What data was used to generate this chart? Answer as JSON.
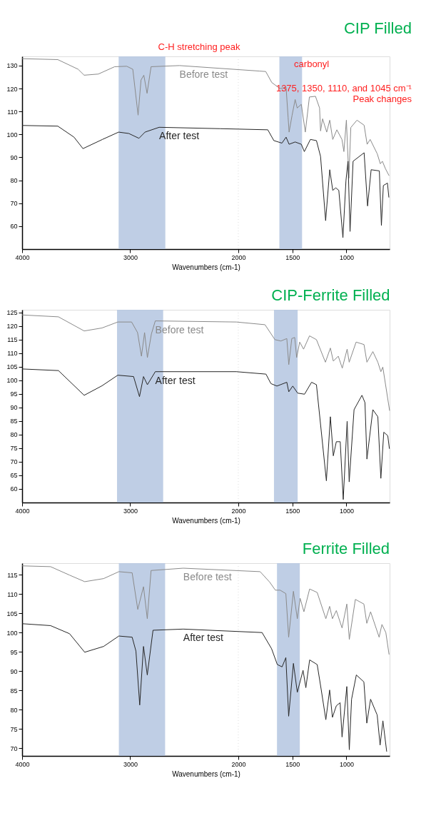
{
  "chart_data": [
    {
      "type": "line",
      "title": "CIP Filled",
      "xlabel": "Wavenumbers (cm-1)",
      "xlim": [
        4000,
        600
      ],
      "xticks": [
        4000,
        3000,
        2000,
        1500,
        1000
      ],
      "ylim": [
        50,
        134
      ],
      "yticks": [
        60,
        70,
        80,
        90,
        100,
        110,
        120,
        130
      ],
      "series": [
        {
          "name": "Before test",
          "color": "#8a8a8a",
          "x": [
            4000,
            3670,
            3482,
            3426,
            3295,
            3144,
            3032,
            2976,
            2927,
            2900,
            2874,
            2844,
            2807,
            2544,
            1803,
            1746,
            1690,
            1615,
            1558,
            1539,
            1530,
            1502,
            1474,
            1455,
            1417,
            1380,
            1342,
            1286,
            1248,
            1239,
            1220,
            1182,
            1154,
            1126,
            1088,
            1041,
            1023,
            1000,
            977,
            959,
            902,
            836,
            808,
            780,
            714,
            686,
            667,
            639,
            605
          ],
          "values": [
            133.0,
            132.6,
            128.4,
            125.8,
            126.3,
            129.5,
            129.7,
            128.4,
            108.4,
            123.7,
            125.8,
            117.9,
            129.5,
            130.0,
            127.6,
            127.4,
            122.6,
            120.0,
            120.5,
            107.3,
            101.0,
            108.4,
            115.2,
            111.5,
            113.1,
            101.0,
            116.3,
            116.6,
            111.5,
            101.5,
            106.8,
            101.0,
            106.2,
            97.8,
            102.0,
            97.8,
            92.5,
            106.2,
            80.9,
            103.0,
            106.2,
            104.0,
            95.7,
            97.8,
            91.5,
            87.2,
            88.3,
            85.1,
            82.0
          ]
        },
        {
          "name": "After test",
          "color": "#262626",
          "x": [
            4000,
            3670,
            3520,
            3437,
            3257,
            3107,
            3013,
            2919,
            2863,
            2732,
            2169,
            1727,
            1671,
            1596,
            1558,
            1530,
            1474,
            1417,
            1389,
            1333,
            1277,
            1239,
            1192,
            1154,
            1126,
            1098,
            1070,
            1032,
            1004,
            985,
            966,
            938,
            836,
            804,
            771,
            695,
            676,
            658,
            620,
            607
          ],
          "values": [
            103.9,
            103.6,
            98.8,
            93.8,
            97.8,
            101.0,
            100.4,
            98.3,
            101.0,
            103.1,
            102.5,
            102.0,
            97.3,
            96.2,
            98.8,
            95.7,
            96.7,
            95.7,
            92.5,
            97.8,
            97.3,
            90.4,
            62.4,
            84.6,
            75.6,
            76.7,
            75.6,
            55.0,
            79.8,
            88.3,
            57.7,
            88.3,
            92.0,
            68.8,
            84.6,
            84.1,
            60.3,
            77.7,
            78.8,
            72.5
          ]
        }
      ],
      "bands": [
        {
          "axis": "x",
          "from": 3107,
          "to": 2675,
          "color": "#b4c6e0"
        },
        {
          "axis": "x",
          "from": 1620,
          "to": 1410,
          "color": "#b4c6e0"
        }
      ],
      "ref_lines": [
        {
          "axis": "x",
          "value": 2000,
          "color": "#dddddd",
          "line_style": "dotted"
        }
      ],
      "annotations": [
        "C-H stretching peak",
        "carbonyl",
        "1375, 1350, 1110, and 1045 cm⁻¹\nPeak changes"
      ]
    },
    {
      "type": "line",
      "title": "CIP-Ferrite Filled",
      "xlabel": "Wavenumbers (cm-1)",
      "xlim": [
        4000,
        600
      ],
      "xticks": [
        4000,
        3000,
        2000,
        1500,
        1000
      ],
      "ylim": [
        55,
        126
      ],
      "yticks": [
        60,
        65,
        70,
        75,
        80,
        85,
        90,
        95,
        100,
        105,
        110,
        115,
        120,
        125
      ],
      "series": [
        {
          "name": "Before test",
          "color": "#8a8a8a",
          "x": [
            4000,
            3664,
            3426,
            3261,
            3115,
            2987,
            2932,
            2896,
            2867,
            2841,
            2804,
            2768,
            2018,
            1753,
            1661,
            1606,
            1551,
            1533,
            1505,
            1478,
            1460,
            1432,
            1396,
            1341,
            1277,
            1194,
            1148,
            1121,
            1075,
            1038,
            993,
            974,
            910,
            837,
            810,
            755,
            709,
            681,
            663,
            600
          ],
          "values": [
            124.1,
            123.4,
            118.2,
            119.3,
            121.5,
            121.5,
            117.6,
            108.9,
            117.6,
            108.4,
            117.1,
            121.9,
            121.5,
            120.5,
            115.0,
            114.5,
            115.4,
            105.8,
            115.4,
            115.8,
            108.4,
            114.1,
            111.5,
            116.4,
            115.0,
            106.7,
            111.9,
            107.1,
            108.9,
            104.5,
            111.5,
            106.7,
            114.1,
            113.2,
            106.7,
            110.6,
            106.7,
            103.2,
            104.9,
            88.8
          ]
        },
        {
          "name": "After test",
          "color": "#262626",
          "x": [
            4000,
            3664,
            3426,
            3261,
            3115,
            2969,
            2914,
            2877,
            2841,
            2768,
            2018,
            1744,
            1698,
            1643,
            1551,
            1533,
            1496,
            1451,
            1387,
            1322,
            1277,
            1185,
            1148,
            1121,
            1093,
            1057,
            1029,
            993,
            974,
            929,
            856,
            828,
            810,
            755,
            709,
            681,
            654,
            617,
            602
          ],
          "values": [
            104.2,
            103.6,
            94.5,
            98.0,
            101.9,
            101.4,
            94.0,
            101.4,
            98.4,
            103.2,
            103.2,
            102.3,
            98.8,
            97.9,
            99.3,
            95.8,
            97.9,
            95.3,
            94.9,
            99.3,
            98.4,
            63.0,
            86.6,
            72.2,
            77.4,
            77.4,
            56.1,
            84.9,
            62.6,
            89.2,
            94.5,
            91.8,
            71.0,
            89.2,
            86.6,
            63.9,
            80.9,
            79.6,
            74.8
          ]
        }
      ],
      "bands": [
        {
          "axis": "x",
          "from": 3122,
          "to": 2695,
          "color": "#b4c6e0"
        },
        {
          "axis": "x",
          "from": 1670,
          "to": 1451,
          "color": "#b4c6e0"
        }
      ],
      "ref_lines": [
        {
          "axis": "x",
          "value": 2000,
          "color": "#dddddd",
          "line_style": "dotted"
        }
      ]
    },
    {
      "type": "line",
      "title": "Ferrite Filled",
      "xlabel": "Wavenumbers (cm-1)",
      "xlim": [
        4000,
        600
      ],
      "xticks": [
        4000,
        3000,
        2000,
        1500,
        1000
      ],
      "ylim": [
        68,
        118
      ],
      "yticks": [
        70,
        75,
        80,
        85,
        90,
        95,
        100,
        105,
        110,
        115
      ],
      "series": [
        {
          "name": "Before test",
          "color": "#8a8a8a",
          "x": [
            4000,
            3737,
            3561,
            3421,
            3246,
            3105,
            2982,
            2930,
            2877,
            2842,
            2807,
            2509,
            1798,
            1710,
            1657,
            1613,
            1560,
            1534,
            1490,
            1454,
            1428,
            1393,
            1340,
            1270,
            1190,
            1155,
            1129,
            1093,
            1040,
            996,
            973,
            917,
            838,
            811,
            776,
            697,
            671,
            635,
            605
          ],
          "values": [
            117.3,
            117.1,
            114.9,
            113.2,
            114.0,
            115.8,
            115.5,
            106.0,
            111.9,
            103.6,
            116.1,
            116.7,
            115.8,
            113.1,
            111.0,
            111.0,
            110.1,
            98.8,
            110.7,
            103.6,
            108.9,
            105.4,
            111.3,
            110.4,
            103.6,
            106.8,
            103.6,
            105.7,
            101.2,
            107.4,
            98.2,
            108.6,
            107.4,
            102.4,
            105.4,
            98.8,
            102.1,
            100.0,
            94.3
          ]
        },
        {
          "name": "After test",
          "color": "#262626",
          "x": [
            4000,
            3737,
            3561,
            3421,
            3246,
            3105,
            2982,
            2947,
            2912,
            2877,
            2842,
            2789,
            2509,
            1780,
            1692,
            1639,
            1595,
            1560,
            1534,
            1490,
            1454,
            1401,
            1375,
            1340,
            1270,
            1234,
            1190,
            1155,
            1129,
            1093,
            1058,
            1040,
            996,
            973,
            952,
            908,
            838,
            811,
            776,
            715,
            688,
            662,
            627
          ],
          "values": [
            102.3,
            101.8,
            99.7,
            94.9,
            96.4,
            99.1,
            98.8,
            95.2,
            81.2,
            96.4,
            89.0,
            100.6,
            100.9,
            100.0,
            95.8,
            91.7,
            91.1,
            93.5,
            78.3,
            92.0,
            84.5,
            90.2,
            85.7,
            92.9,
            91.7,
            85.4,
            77.4,
            85.1,
            78.0,
            81.0,
            81.8,
            72.9,
            86.0,
            69.6,
            82.7,
            89.0,
            87.2,
            76.5,
            82.7,
            78.6,
            70.8,
            77.1,
            69.1
          ]
        }
      ],
      "bands": [
        {
          "axis": "x",
          "from": 3105,
          "to": 2677,
          "color": "#b4c6e0"
        },
        {
          "axis": "x",
          "from": 1642,
          "to": 1431,
          "color": "#b4c6e0"
        }
      ],
      "ref_lines": [
        {
          "axis": "x",
          "value": 2000,
          "color": "#dddddd",
          "line_style": "dotted"
        }
      ]
    }
  ]
}
